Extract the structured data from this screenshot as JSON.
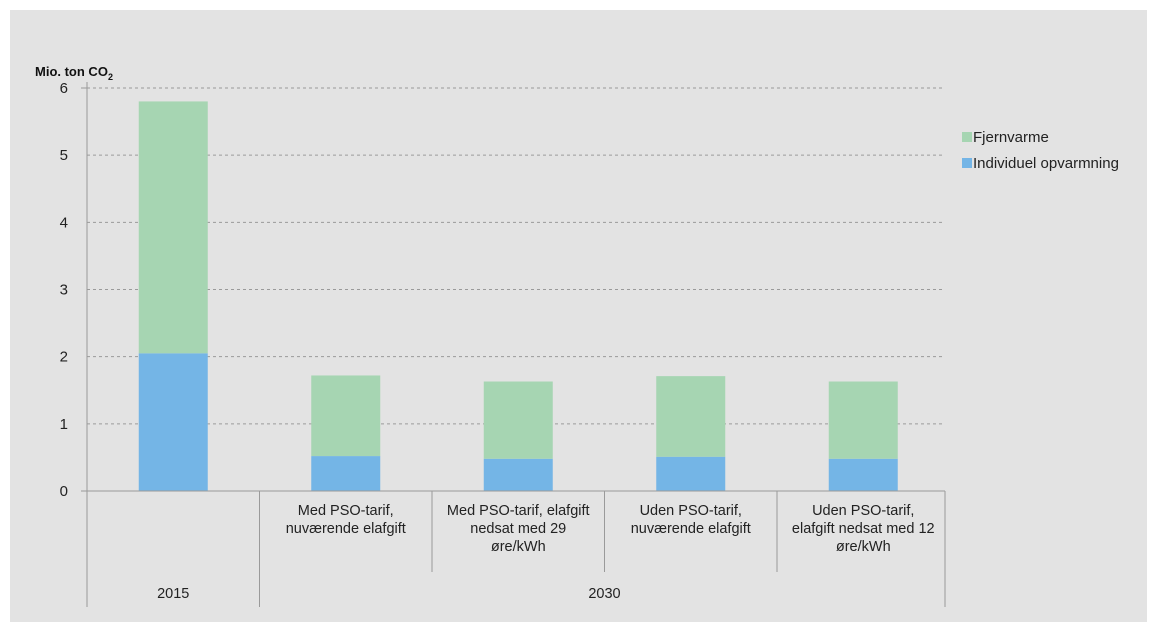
{
  "chart_data": {
    "type": "bar",
    "stacked": true,
    "ylabel": {
      "main": "Mio. ton CO",
      "subscript": "2"
    },
    "ylim": [
      0,
      6
    ],
    "yticks": [
      0,
      1,
      2,
      3,
      4,
      5,
      6
    ],
    "grid": true,
    "legend_position": "right",
    "categories": [
      "",
      "Med PSO-tarif, nuværende elafgift",
      "Med PSO-tarif, elafgift nedsat med 29 øre/kWh",
      "Uden PSO-tarif, nuværende elafgift",
      "Uden PSO-tarif, elafgift nedsat med 12 øre/kWh"
    ],
    "category_lines": [
      [],
      [
        "Med PSO-tarif,",
        "nuværende elafgift"
      ],
      [
        "Med PSO-tarif, elafgift",
        "nedsat med 29",
        "øre/kWh"
      ],
      [
        "Uden PSO-tarif,",
        "nuværende elafgift"
      ],
      [
        "Uden PSO-tarif,",
        "elafgift nedsat med 12",
        "øre/kWh"
      ]
    ],
    "groups": [
      {
        "label": "2015",
        "categories": [
          0
        ]
      },
      {
        "label": "2030",
        "categories": [
          1,
          2,
          3,
          4
        ]
      }
    ],
    "series": [
      {
        "name": "Individuel opvarmning",
        "color": "#74b5e6",
        "values": [
          2.05,
          0.52,
          0.48,
          0.51,
          0.48
        ]
      },
      {
        "name": "Fjernvarme",
        "color": "#a6d5b2",
        "values": [
          3.75,
          1.2,
          1.15,
          1.2,
          1.15
        ]
      }
    ],
    "legend_order": [
      "Fjernvarme",
      "Individuel opvarmning"
    ]
  },
  "colors": {
    "background": "#e3e3e3",
    "grid": "#9a9a9a",
    "axis": "#9a9a9a"
  }
}
